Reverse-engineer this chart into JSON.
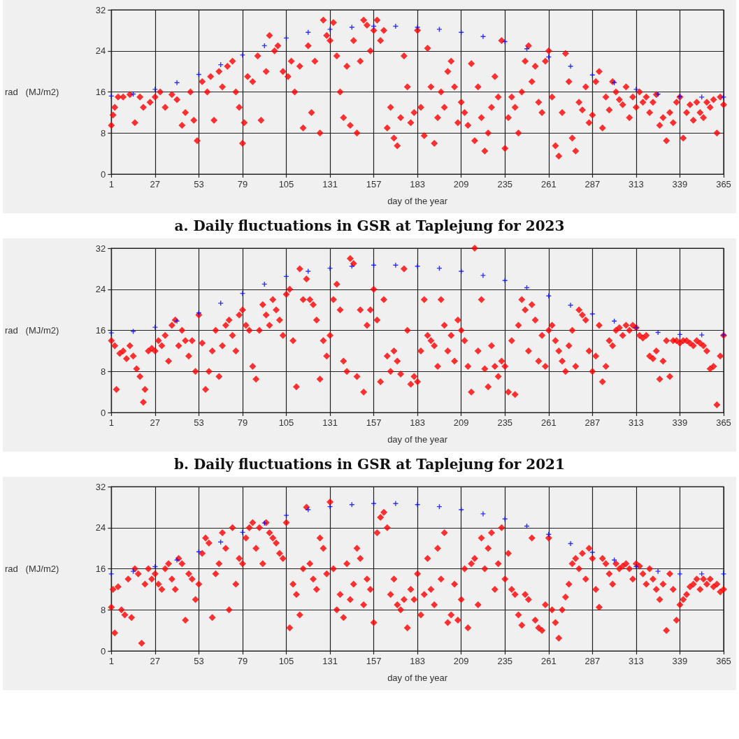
{
  "chart_data": [
    {
      "type": "scatter",
      "title": "a.    Daily fluctuations in GSR at Taplejung for 2023",
      "xlabel": "day of the year",
      "ylabel": "rad   (MJ/m2)",
      "xlim": [
        1,
        365
      ],
      "xticks": [
        1,
        27,
        53,
        79,
        105,
        131,
        157,
        183,
        209,
        235,
        261,
        287,
        313,
        339,
        365
      ],
      "ylim": [
        0,
        32
      ],
      "yticks": [
        0,
        8,
        16,
        24,
        32
      ],
      "grid": true,
      "series": [
        {
          "color": "#0000ff",
          "marker": "cross",
          "x": [
            1,
            14,
            27,
            40,
            53,
            66,
            79,
            92,
            105,
            118,
            131,
            144,
            157,
            170,
            183,
            196,
            209,
            222,
            235,
            248,
            261,
            274,
            287,
            300,
            313,
            326,
            339,
            352,
            365
          ],
          "values": [
            15.2,
            15.6,
            16.5,
            17.8,
            19.4,
            21.3,
            23.2,
            25,
            26.5,
            27.6,
            28.2,
            28.6,
            28.8,
            28.8,
            28.6,
            28.2,
            27.6,
            26.8,
            25.8,
            24.4,
            22.8,
            21,
            19.3,
            17.8,
            16.5,
            15.6,
            15.1,
            15,
            15
          ]
        },
        {
          "color": "#ff0000",
          "marker": "diamond",
          "x": [
            1,
            2,
            3,
            5,
            8,
            12,
            15,
            18,
            20,
            24,
            27,
            30,
            33,
            37,
            40,
            43,
            45,
            48,
            50,
            52,
            55,
            58,
            60,
            62,
            65,
            67,
            70,
            73,
            75,
            77,
            79,
            80,
            82,
            85,
            88,
            90,
            93,
            95,
            98,
            100,
            103,
            106,
            108,
            110,
            113,
            115,
            118,
            120,
            122,
            125,
            127,
            129,
            131,
            133,
            135,
            137,
            139,
            141,
            143,
            145,
            147,
            149,
            151,
            153,
            155,
            157,
            159,
            161,
            163,
            165,
            167,
            169,
            171,
            173,
            175,
            177,
            179,
            181,
            183,
            185,
            187,
            189,
            191,
            193,
            195,
            197,
            199,
            201,
            203,
            205,
            207,
            209,
            211,
            213,
            215,
            217,
            219,
            221,
            223,
            225,
            227,
            229,
            231,
            233,
            235,
            237,
            239,
            241,
            243,
            245,
            247,
            249,
            251,
            253,
            255,
            257,
            259,
            261,
            263,
            265,
            267,
            269,
            271,
            273,
            275,
            277,
            279,
            281,
            283,
            285,
            287,
            289,
            291,
            293,
            295,
            297,
            299,
            301,
            303,
            305,
            307,
            309,
            311,
            313,
            315,
            317,
            319,
            321,
            323,
            325,
            327,
            329,
            331,
            333,
            335,
            337,
            339,
            341,
            343,
            345,
            347,
            349,
            351,
            353,
            355,
            357,
            359,
            361,
            363,
            365
          ],
          "values": [
            9.5,
            11.5,
            13,
            15,
            15,
            15.5,
            10,
            15,
            13,
            14,
            15,
            16,
            13,
            15.5,
            14.5,
            9.5,
            12,
            16,
            10.5,
            6.5,
            18,
            16,
            19,
            10.5,
            20,
            17,
            21,
            22,
            16,
            13,
            6,
            10,
            19,
            18,
            23,
            10.5,
            20,
            27,
            24,
            25,
            20,
            19,
            22,
            16,
            21,
            9,
            25,
            12,
            22,
            8,
            30,
            27,
            26,
            29.5,
            23,
            16,
            11,
            21,
            9.5,
            26,
            8,
            22,
            30,
            29,
            24,
            28,
            30,
            26,
            28,
            9,
            13,
            7,
            5.5,
            11,
            23,
            17,
            10,
            12,
            28,
            13,
            7.5,
            24.5,
            17,
            6,
            11,
            16,
            13,
            20,
            22,
            17,
            10,
            14,
            12,
            9.5,
            21.5,
            6.5,
            17,
            11,
            4.5,
            8,
            13,
            19,
            15,
            26,
            5,
            11,
            15,
            13,
            8,
            16,
            22,
            25,
            18,
            21,
            14,
            12,
            22,
            24,
            15,
            5.5,
            3.5,
            12,
            23.5,
            18,
            7,
            4.5,
            14,
            12.5,
            17,
            10,
            11.5,
            18,
            20,
            9,
            15,
            12.5,
            18,
            16,
            14.5,
            13.5,
            17,
            11,
            15,
            13,
            16,
            14,
            15,
            12,
            14,
            15.5,
            9.5,
            11,
            6.5,
            12,
            10,
            14,
            15,
            7,
            12,
            13.5,
            10.5,
            14,
            12,
            11,
            14,
            13,
            14.5,
            8,
            15,
            13.5
          ]
        }
      ]
    },
    {
      "type": "scatter",
      "title": "b.    Daily fluctuations in GSR at Taplejung for 2021",
      "xlabel": "day of the year",
      "ylabel": "rad   (MJ/m2)",
      "xlim": [
        1,
        365
      ],
      "xticks": [
        1,
        27,
        53,
        79,
        105,
        131,
        157,
        183,
        209,
        235,
        261,
        287,
        313,
        339,
        365
      ],
      "ylim": [
        0,
        32
      ],
      "yticks": [
        0,
        8,
        16,
        24,
        32
      ],
      "grid": true,
      "series": [
        {
          "color": "#0000ff",
          "marker": "cross",
          "x": [
            1,
            14,
            27,
            40,
            53,
            66,
            79,
            92,
            105,
            118,
            131,
            144,
            157,
            170,
            183,
            196,
            209,
            222,
            235,
            248,
            261,
            274,
            287,
            300,
            313,
            326,
            339,
            352,
            365
          ],
          "values": [
            15.5,
            15.8,
            16.6,
            17.8,
            19.4,
            21.3,
            23.2,
            25,
            26.5,
            27.5,
            28.1,
            28.5,
            28.7,
            28.7,
            28.5,
            28.1,
            27.5,
            26.7,
            25.7,
            24.3,
            22.7,
            20.9,
            19.2,
            17.8,
            16.5,
            15.6,
            15.2,
            15.1,
            15.1
          ]
        },
        {
          "color": "#ff0000",
          "marker": "diamond",
          "x": [
            1,
            3,
            4,
            6,
            8,
            10,
            12,
            14,
            16,
            18,
            20,
            21,
            23,
            25,
            27,
            29,
            31,
            33,
            35,
            37,
            39,
            41,
            43,
            45,
            47,
            49,
            51,
            53,
            55,
            57,
            59,
            61,
            63,
            65,
            67,
            69,
            71,
            73,
            75,
            77,
            79,
            81,
            83,
            85,
            87,
            89,
            91,
            93,
            95,
            97,
            99,
            101,
            103,
            105,
            107,
            109,
            111,
            113,
            115,
            117,
            119,
            121,
            123,
            125,
            127,
            129,
            131,
            133,
            135,
            137,
            139,
            141,
            143,
            145,
            147,
            149,
            151,
            153,
            155,
            157,
            159,
            161,
            163,
            165,
            167,
            169,
            171,
            173,
            175,
            177,
            179,
            181,
            183,
            185,
            187,
            189,
            191,
            193,
            195,
            197,
            199,
            201,
            203,
            205,
            207,
            209,
            211,
            213,
            215,
            217,
            219,
            221,
            223,
            225,
            227,
            229,
            231,
            233,
            235,
            237,
            239,
            241,
            243,
            245,
            247,
            249,
            251,
            253,
            255,
            257,
            259,
            261,
            263,
            265,
            267,
            269,
            271,
            273,
            275,
            277,
            279,
            281,
            283,
            285,
            287,
            289,
            291,
            293,
            295,
            297,
            299,
            301,
            303,
            305,
            307,
            309,
            311,
            313,
            315,
            317,
            319,
            321,
            323,
            325,
            327,
            329,
            331,
            333,
            335,
            337,
            339,
            341,
            343,
            345,
            347,
            349,
            351,
            353,
            355,
            357,
            359,
            361,
            363,
            365
          ],
          "values": [
            14,
            13,
            4.5,
            11.5,
            12,
            10.5,
            13,
            11,
            8.5,
            7,
            2,
            4.5,
            12,
            12.5,
            12,
            14,
            13,
            15,
            10,
            17,
            18,
            13,
            16,
            14,
            11,
            14,
            8,
            19,
            13.5,
            4.5,
            8,
            12,
            16,
            7,
            13,
            17,
            18,
            15,
            12,
            19,
            20,
            17,
            16,
            9,
            6.5,
            16,
            21,
            19,
            17,
            22,
            20,
            18,
            15,
            23,
            24,
            14,
            5,
            28,
            22,
            26,
            22,
            21,
            18,
            6.5,
            14,
            11,
            15,
            22,
            25,
            20,
            10,
            8,
            30,
            29,
            7,
            20,
            4,
            17,
            20,
            24,
            18,
            6,
            22,
            11,
            8,
            12,
            10,
            7.5,
            28,
            16,
            5.5,
            7,
            6,
            12,
            22,
            15,
            14,
            13,
            9,
            22,
            17,
            12,
            15,
            10,
            18,
            16,
            14,
            9,
            4,
            32,
            12,
            22,
            8.5,
            5,
            13,
            9,
            7,
            10,
            9,
            4,
            14,
            3.5,
            17,
            22,
            20,
            12,
            21,
            18,
            10,
            15,
            9,
            16,
            17,
            14,
            12,
            10,
            8,
            13,
            16,
            9,
            20,
            19,
            18,
            12,
            8,
            11,
            17,
            6,
            9,
            14,
            13,
            16,
            16.5,
            15,
            17,
            16,
            17,
            16.5,
            15,
            14.5,
            15,
            11,
            10.5,
            12,
            6.5,
            10,
            14,
            7,
            14,
            14,
            13.5,
            14,
            14,
            13.5,
            13,
            14,
            13.5,
            13,
            12,
            8.5,
            9,
            1.5,
            11,
            15
          ]
        }
      ]
    },
    {
      "type": "scatter",
      "xlabel": "day of the year",
      "ylabel": "rad   (MJ/m2)",
      "xlim": [
        1,
        365
      ],
      "xticks": [
        1,
        27,
        53,
        79,
        105,
        131,
        157,
        183,
        209,
        235,
        261,
        287,
        313,
        339,
        365
      ],
      "ylim": [
        0,
        32
      ],
      "yticks": [
        0,
        8,
        16,
        24,
        32
      ],
      "grid": true,
      "series": [
        {
          "color": "#0000ff",
          "marker": "cross",
          "x": [
            1,
            14,
            27,
            40,
            53,
            66,
            79,
            92,
            105,
            118,
            131,
            144,
            157,
            170,
            183,
            196,
            209,
            222,
            235,
            248,
            261,
            274,
            287,
            300,
            313,
            326,
            339,
            352,
            365
          ],
          "values": [
            15,
            15.5,
            16.4,
            17.7,
            19.3,
            21.2,
            23.1,
            24.9,
            26.4,
            27.5,
            28.1,
            28.5,
            28.7,
            28.7,
            28.5,
            28.1,
            27.5,
            26.7,
            25.7,
            24.3,
            22.7,
            20.9,
            19.2,
            17.7,
            16.4,
            15.5,
            15,
            15,
            15
          ]
        },
        {
          "color": "#ff0000",
          "marker": "diamond",
          "x": [
            1,
            2,
            3,
            5,
            7,
            9,
            11,
            13,
            15,
            17,
            19,
            21,
            23,
            25,
            27,
            29,
            31,
            33,
            35,
            37,
            39,
            41,
            43,
            45,
            47,
            49,
            51,
            53,
            55,
            57,
            59,
            61,
            63,
            65,
            67,
            69,
            71,
            73,
            75,
            77,
            79,
            81,
            83,
            85,
            87,
            89,
            91,
            93,
            95,
            97,
            99,
            101,
            103,
            105,
            107,
            109,
            111,
            113,
            115,
            117,
            119,
            121,
            123,
            125,
            127,
            129,
            131,
            133,
            135,
            137,
            139,
            141,
            143,
            145,
            147,
            149,
            151,
            153,
            155,
            157,
            159,
            161,
            163,
            165,
            167,
            169,
            171,
            173,
            175,
            177,
            179,
            181,
            183,
            185,
            187,
            189,
            191,
            193,
            195,
            197,
            199,
            201,
            203,
            205,
            207,
            209,
            211,
            213,
            215,
            217,
            219,
            221,
            223,
            225,
            227,
            229,
            231,
            233,
            235,
            237,
            239,
            241,
            243,
            245,
            247,
            249,
            251,
            253,
            255,
            257,
            259,
            261,
            263,
            265,
            267,
            269,
            271,
            273,
            275,
            277,
            279,
            281,
            283,
            285,
            287,
            289,
            291,
            293,
            295,
            297,
            299,
            301,
            303,
            305,
            307,
            309,
            311,
            313,
            315,
            317,
            319,
            321,
            323,
            325,
            327,
            329,
            331,
            333,
            335,
            337,
            339,
            341,
            343,
            345,
            347,
            349,
            351,
            353,
            355,
            357,
            359,
            361,
            363,
            365
          ],
          "values": [
            8.5,
            12,
            3.5,
            12.5,
            8,
            7,
            14,
            6.5,
            16,
            15,
            1.5,
            13,
            16,
            14,
            15,
            13,
            12,
            16,
            17,
            14,
            12,
            18,
            17,
            6,
            15,
            14,
            10,
            13,
            19,
            22,
            21,
            6.5,
            15,
            17,
            23,
            20,
            8,
            24,
            13,
            18,
            17,
            22,
            24,
            25,
            20,
            24,
            17,
            25,
            23,
            22,
            21,
            19,
            18,
            25,
            4.5,
            13,
            11,
            7,
            16,
            28,
            17,
            14,
            12,
            22,
            20,
            15,
            29,
            16,
            8,
            11,
            6.5,
            17,
            10,
            13,
            20,
            18,
            9,
            14,
            12,
            5.5,
            23,
            26,
            27,
            24,
            11,
            14,
            9,
            8,
            10,
            4.5,
            12,
            10,
            15,
            7,
            11,
            18,
            12,
            9,
            20,
            14,
            23,
            5.5,
            7,
            13,
            6,
            10,
            16,
            4.5,
            17,
            18,
            9,
            22,
            16,
            20,
            23,
            12,
            17,
            24,
            14,
            19,
            12,
            11,
            7,
            5,
            11,
            10,
            22,
            6,
            4.5,
            4,
            9,
            22,
            8,
            5.5,
            2.5,
            8,
            10.5,
            13,
            17,
            18,
            16,
            19,
            14,
            20,
            18,
            12,
            8.5,
            18,
            17,
            15,
            13,
            17,
            16,
            16.5,
            17,
            16,
            14,
            17,
            16.5,
            15,
            13,
            16,
            14,
            12,
            10,
            13,
            4,
            15,
            12,
            6,
            9,
            10,
            11,
            12.5,
            13,
            14,
            12,
            14,
            13,
            14,
            12.5,
            13,
            11.5,
            12
          ]
        }
      ]
    }
  ]
}
